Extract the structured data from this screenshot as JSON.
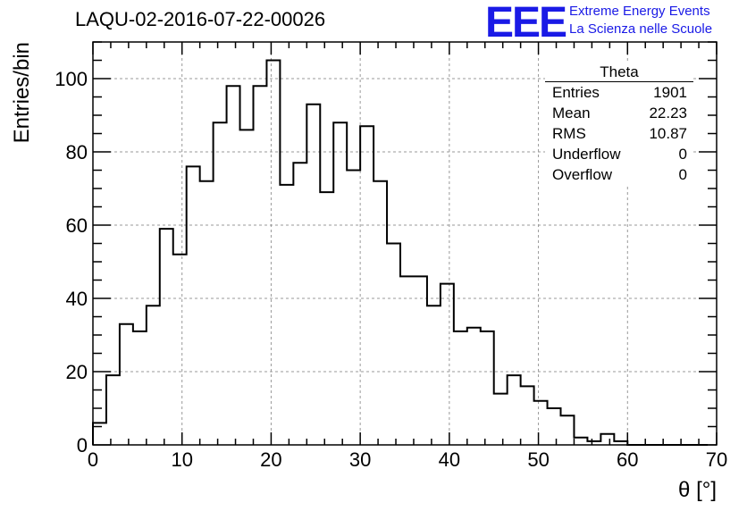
{
  "title": "LAQU-02-2016-07-22-00026",
  "logo": {
    "mark": "EEE",
    "line1": "Extreme Energy Events",
    "line2": "La Scienza nelle Scuole",
    "color": "#1a1ae6"
  },
  "stats": {
    "title": "Theta",
    "rows": [
      {
        "label": "Entries",
        "value": "1901"
      },
      {
        "label": "Mean",
        "value": "22.23"
      },
      {
        "label": "RMS",
        "value": "10.87"
      },
      {
        "label": "Underflow",
        "value": "0"
      },
      {
        "label": "Overflow",
        "value": "0"
      }
    ]
  },
  "chart_data": {
    "type": "histogram",
    "title": "LAQU-02-2016-07-22-00026",
    "xlabel": "θ [°]",
    "ylabel": "Entries/bin",
    "xlim": [
      0,
      70
    ],
    "ylim": [
      0,
      110
    ],
    "xticks": [
      0,
      10,
      20,
      30,
      40,
      50,
      60,
      70
    ],
    "yticks": [
      0,
      20,
      40,
      60,
      80,
      100
    ],
    "grid": true,
    "bin_width": 1.5,
    "bin_start": 0,
    "values": [
      6,
      19,
      33,
      31,
      38,
      59,
      52,
      76,
      72,
      88,
      98,
      86,
      98,
      105,
      71,
      77,
      93,
      69,
      88,
      75,
      87,
      72,
      55,
      46,
      46,
      38,
      44,
      31,
      32,
      31,
      14,
      19,
      16,
      12,
      10,
      8,
      2,
      1,
      3,
      1,
      0,
      0,
      0,
      0,
      0,
      0,
      0
    ],
    "line_color": "#000000"
  }
}
